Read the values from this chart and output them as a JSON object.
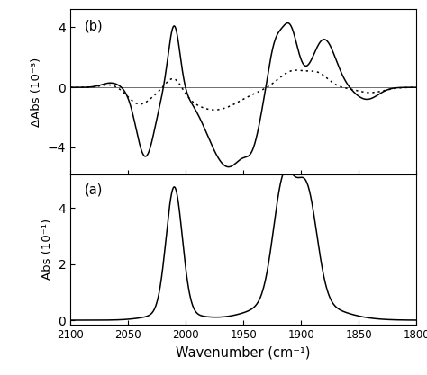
{
  "x_min": 1800,
  "x_max": 2100,
  "xlabel": "Wavenumber (cm⁻¹)",
  "panel_a_ylabel": "Abs (10⁻¹)",
  "panel_b_ylabel": "ΔAbs (10⁻³)",
  "panel_a_label": "(a)",
  "panel_b_label": "(b)",
  "panel_a_ylim": [
    -0.15,
    5.2
  ],
  "panel_b_ylim": [
    -5.8,
    5.2
  ],
  "panel_a_yticks": [
    0,
    2,
    4
  ],
  "panel_b_yticks": [
    -4,
    0,
    4
  ],
  "background_color": "#ffffff",
  "line_color": "#000000",
  "xticks": [
    2100,
    2050,
    2000,
    1950,
    1900,
    1850,
    1800
  ]
}
